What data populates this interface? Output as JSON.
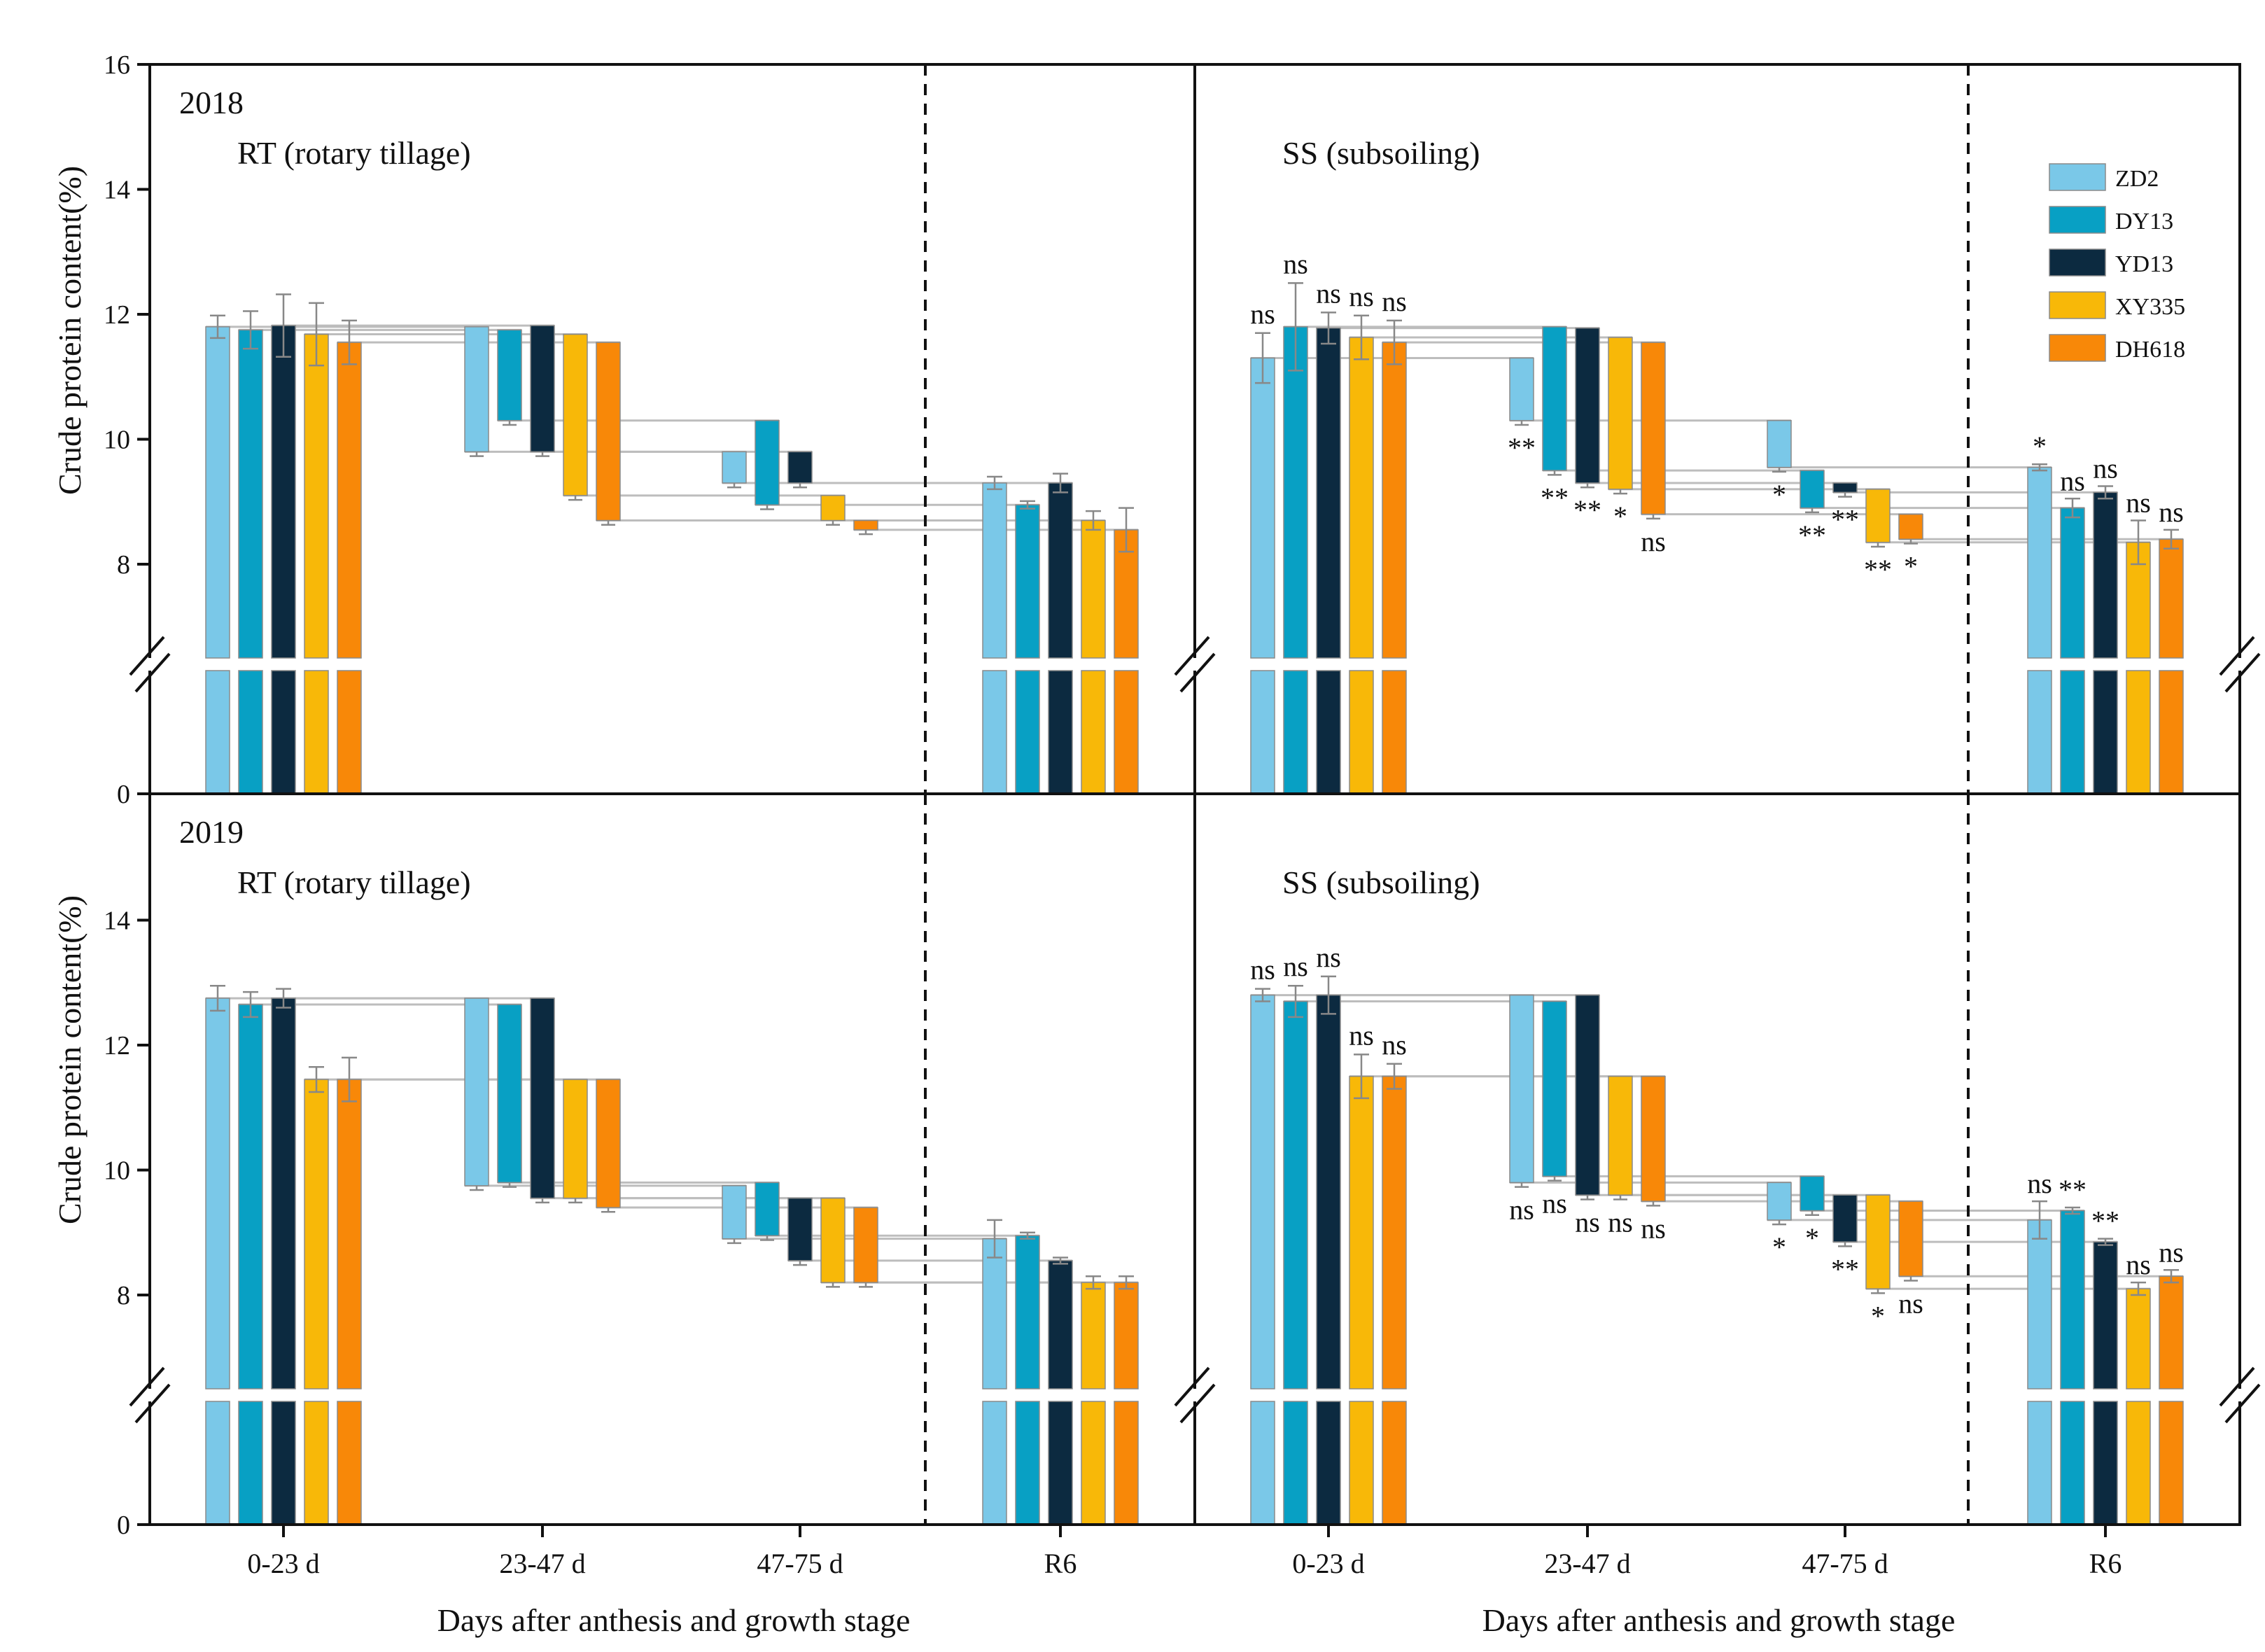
{
  "chart_data": {
    "type": "bar",
    "subtype": "waterfall",
    "xlabel": "Days after anthesis and growth stage",
    "ylabel": "Crude protein content(%)",
    "ylim": [
      0,
      16
    ],
    "axis_break": [
      7.5,
      6.5
    ],
    "yticks": [
      0,
      8,
      10,
      12,
      14,
      16
    ],
    "categories": [
      "0-23 d",
      "23-47 d",
      "47-75 d",
      "R6"
    ],
    "varieties": [
      "ZD2",
      "DY13",
      "YD13",
      "XY335",
      "DH618"
    ],
    "colors": [
      "#7ac8e8",
      "#08a0c4",
      "#0c2a40",
      "#f8b808",
      "#f88808"
    ],
    "panels": [
      {
        "year": "2018",
        "title": "RT (rotary tillage)",
        "start": [
          11.8,
          11.75,
          11.82,
          11.68,
          11.55
        ],
        "after_stage1": [
          9.8,
          10.3,
          9.8,
          9.1,
          8.7
        ],
        "after_stage2": [
          9.3,
          8.95,
          9.3,
          8.7,
          8.55
        ],
        "final": [
          9.3,
          8.95,
          9.3,
          8.7,
          8.55
        ],
        "err_start": [
          0.18,
          0.3,
          0.5,
          0.5,
          0.35
        ],
        "err_final": [
          0.1,
          0.06,
          0.15,
          0.15,
          0.35
        ],
        "err_step": [
          0.07,
          0.07,
          0.07,
          0.07,
          0.07
        ],
        "sig": null
      },
      {
        "year": "",
        "title": "SS (subsoiling)",
        "start": [
          11.3,
          11.8,
          11.78,
          11.63,
          11.55
        ],
        "after_stage1": [
          10.3,
          9.5,
          9.3,
          9.2,
          8.8
        ],
        "after_stage2": [
          9.55,
          8.9,
          9.15,
          8.35,
          8.4
        ],
        "final": [
          9.55,
          8.9,
          9.15,
          8.35,
          8.4
        ],
        "err_start": [
          0.4,
          0.7,
          0.25,
          0.35,
          0.35
        ],
        "err_final": [
          0.05,
          0.15,
          0.1,
          0.35,
          0.15
        ],
        "err_step": [
          0.07,
          0.07,
          0.07,
          0.07,
          0.07
        ],
        "sig": {
          "start": [
            "ns",
            "ns",
            "ns",
            "ns",
            "ns"
          ],
          "stage1": [
            "**",
            "**",
            "**",
            "*",
            "ns"
          ],
          "stage2": [
            "*",
            "**",
            "**",
            "**",
            "*"
          ],
          "final": [
            "*",
            "ns",
            "ns",
            "ns",
            "ns"
          ]
        }
      },
      {
        "year": "2019",
        "title": "RT (rotary tillage)",
        "start": [
          12.75,
          12.65,
          12.75,
          11.45,
          11.45
        ],
        "after_stage1": [
          9.75,
          9.8,
          9.55,
          9.55,
          9.4
        ],
        "after_stage2": [
          8.9,
          8.95,
          8.55,
          8.2,
          8.2
        ],
        "final": [
          8.9,
          8.95,
          8.55,
          8.2,
          8.2
        ],
        "err_start": [
          0.2,
          0.2,
          0.15,
          0.2,
          0.35
        ],
        "err_final": [
          0.3,
          0.05,
          0.05,
          0.1,
          0.1
        ],
        "err_step": [
          0.07,
          0.07,
          0.07,
          0.07,
          0.07
        ],
        "sig": null
      },
      {
        "year": "",
        "title": "SS (subsoiling)",
        "start": [
          12.8,
          12.7,
          12.8,
          11.5,
          11.5
        ],
        "after_stage1": [
          9.8,
          9.9,
          9.6,
          9.6,
          9.5
        ],
        "after_stage2": [
          9.2,
          9.35,
          8.85,
          8.1,
          8.3
        ],
        "final": [
          9.2,
          9.35,
          8.85,
          8.1,
          8.3
        ],
        "err_start": [
          0.1,
          0.25,
          0.3,
          0.35,
          0.2
        ],
        "err_final": [
          0.3,
          0.05,
          0.05,
          0.1,
          0.1
        ],
        "err_step": [
          0.07,
          0.07,
          0.07,
          0.07,
          0.07
        ],
        "sig": {
          "start": [
            "ns",
            "ns",
            "ns",
            "ns",
            "ns"
          ],
          "stage1": [
            "ns",
            "ns",
            "ns",
            "ns",
            "ns"
          ],
          "stage2": [
            "*",
            "*",
            "**",
            "*",
            "ns"
          ],
          "final": [
            "ns",
            "**",
            "**",
            "ns",
            "ns"
          ]
        }
      }
    ]
  }
}
